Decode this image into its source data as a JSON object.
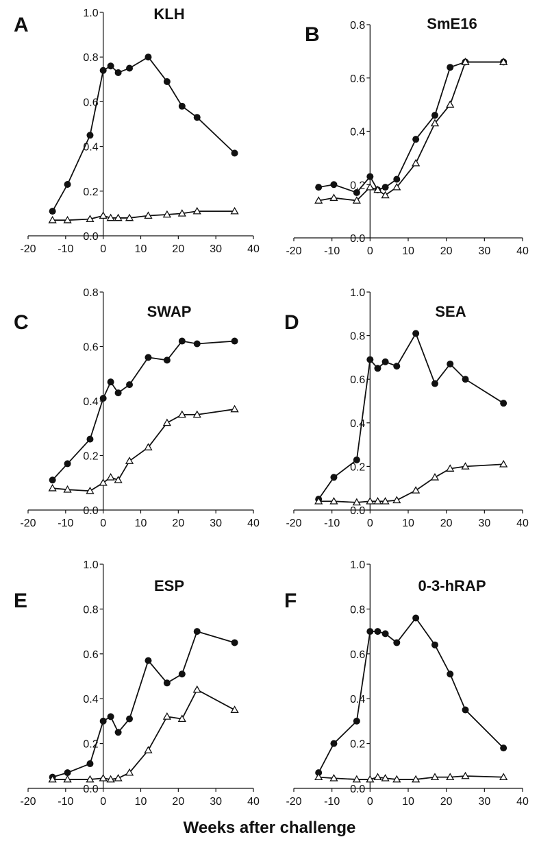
{
  "figure": {
    "xlabel": "Weeks after challenge"
  },
  "chart_data": [
    {
      "type": "line",
      "panel": "A",
      "title": "KLH",
      "xlim": [
        -20,
        40
      ],
      "ylim": [
        0,
        1.0
      ],
      "xticks": [
        -20,
        -10,
        0,
        10,
        20,
        30,
        40
      ],
      "xtick_labels": [
        "-20",
        "-10",
        "0",
        "10",
        "20",
        "30",
        "40"
      ],
      "yticks": [
        0,
        0.2,
        0.4,
        0.6,
        0.8,
        1.0
      ],
      "ytick_labels": [
        "0.0",
        "0.2",
        "0.4",
        "0.6",
        "0.8",
        "1.0"
      ],
      "series": [
        {
          "marker": "filled-circle",
          "x": [
            -13.5,
            -9.5,
            -3.5,
            0,
            2,
            4,
            7,
            12,
            17,
            21,
            25,
            35
          ],
          "y": [
            0.11,
            0.23,
            0.45,
            0.74,
            0.76,
            0.73,
            0.75,
            0.8,
            0.69,
            0.58,
            0.53,
            0.37
          ]
        },
        {
          "marker": "open-triangle",
          "x": [
            -13.5,
            -9.5,
            -3.5,
            0,
            2,
            4,
            7,
            12,
            17,
            21,
            25,
            35
          ],
          "y": [
            0.07,
            0.07,
            0.075,
            0.09,
            0.08,
            0.08,
            0.08,
            0.09,
            0.095,
            0.1,
            0.11,
            0.11
          ]
        }
      ]
    },
    {
      "type": "line",
      "panel": "B",
      "title": "SmE16",
      "xlim": [
        -20,
        40
      ],
      "ylim": [
        0,
        0.8
      ],
      "xticks": [
        -20,
        -10,
        0,
        10,
        20,
        30,
        40
      ],
      "xtick_labels": [
        "-20",
        "-10",
        "0",
        "10",
        "20",
        "30",
        "40"
      ],
      "yticks": [
        0,
        0.2,
        0.4,
        0.6,
        0.8
      ],
      "ytick_labels": [
        "0.0",
        "0.2",
        "0.4",
        "0.6",
        "0.8"
      ],
      "series": [
        {
          "marker": "filled-circle",
          "x": [
            -13.5,
            -9.5,
            -3.5,
            0,
            2,
            4,
            7,
            12,
            17,
            21,
            25,
            35
          ],
          "y": [
            0.19,
            0.2,
            0.17,
            0.23,
            0.18,
            0.19,
            0.22,
            0.37,
            0.46,
            0.64,
            0.66,
            0.66
          ]
        },
        {
          "marker": "open-triangle",
          "x": [
            -13.5,
            -9.5,
            -3.5,
            0,
            2,
            4,
            7,
            12,
            17,
            21,
            25,
            35
          ],
          "y": [
            0.14,
            0.15,
            0.14,
            0.19,
            0.18,
            0.16,
            0.19,
            0.28,
            0.43,
            0.5,
            0.66,
            0.66
          ]
        }
      ]
    },
    {
      "type": "line",
      "panel": "C",
      "title": "SWAP",
      "xlim": [
        -20,
        40
      ],
      "ylim": [
        0,
        0.8
      ],
      "xticks": [
        -20,
        -10,
        0,
        10,
        20,
        30,
        40
      ],
      "xtick_labels": [
        "-20",
        "-10",
        "0",
        "10",
        "20",
        "30",
        "40"
      ],
      "yticks": [
        0,
        0.2,
        0.4,
        0.6,
        0.8
      ],
      "ytick_labels": [
        "0.0",
        "0.2",
        "0.4",
        "0.6",
        "0.8"
      ],
      "series": [
        {
          "marker": "filled-circle",
          "x": [
            -13.5,
            -9.5,
            -3.5,
            0,
            2,
            4,
            7,
            12,
            17,
            21,
            25,
            35
          ],
          "y": [
            0.11,
            0.17,
            0.26,
            0.41,
            0.47,
            0.43,
            0.46,
            0.56,
            0.55,
            0.62,
            0.61,
            0.62
          ]
        },
        {
          "marker": "open-triangle",
          "x": [
            -13.5,
            -9.5,
            -3.5,
            0,
            2,
            4,
            7,
            12,
            17,
            21,
            25,
            35
          ],
          "y": [
            0.08,
            0.075,
            0.07,
            0.1,
            0.12,
            0.11,
            0.18,
            0.23,
            0.32,
            0.35,
            0.35,
            0.37
          ]
        }
      ]
    },
    {
      "type": "line",
      "panel": "D",
      "title": "SEA",
      "xlim": [
        -20,
        40
      ],
      "ylim": [
        0,
        1.0
      ],
      "xticks": [
        -20,
        -10,
        0,
        10,
        20,
        30,
        40
      ],
      "xtick_labels": [
        "-20",
        "-10",
        "0",
        "10",
        "20",
        "30",
        "40"
      ],
      "yticks": [
        0,
        0.2,
        0.4,
        0.6,
        0.8,
        1.0
      ],
      "ytick_labels": [
        "0.0",
        "0.2",
        "0.4",
        "0.6",
        "0.8",
        "1.0"
      ],
      "series": [
        {
          "marker": "filled-circle",
          "x": [
            -13.5,
            -9.5,
            -3.5,
            0,
            2,
            4,
            7,
            12,
            17,
            21,
            25,
            35
          ],
          "y": [
            0.05,
            0.15,
            0.23,
            0.69,
            0.65,
            0.68,
            0.66,
            0.81,
            0.58,
            0.67,
            0.6,
            0.49
          ]
        },
        {
          "marker": "open-triangle",
          "x": [
            -13.5,
            -9.5,
            -3.5,
            0,
            2,
            4,
            7,
            12,
            17,
            21,
            25,
            35
          ],
          "y": [
            0.04,
            0.04,
            0.035,
            0.04,
            0.04,
            0.04,
            0.045,
            0.09,
            0.15,
            0.19,
            0.2,
            0.21
          ]
        }
      ]
    },
    {
      "type": "line",
      "panel": "E",
      "title": "ESP",
      "xlim": [
        -20,
        40
      ],
      "ylim": [
        0,
        1.0
      ],
      "xticks": [
        -20,
        -10,
        0,
        10,
        20,
        30,
        40
      ],
      "xtick_labels": [
        "-20",
        "-10",
        "0",
        "10",
        "20",
        "30",
        "40"
      ],
      "yticks": [
        0,
        0.2,
        0.4,
        0.6,
        0.8,
        1.0
      ],
      "ytick_labels": [
        "0.0",
        "0.2",
        "0.4",
        "0.6",
        "0.8",
        "1.0"
      ],
      "series": [
        {
          "marker": "filled-circle",
          "x": [
            -13.5,
            -9.5,
            -3.5,
            0,
            2,
            4,
            7,
            12,
            17,
            21,
            25,
            35
          ],
          "y": [
            0.05,
            0.07,
            0.11,
            0.3,
            0.32,
            0.25,
            0.31,
            0.57,
            0.47,
            0.51,
            0.7,
            0.65
          ]
        },
        {
          "marker": "open-triangle",
          "x": [
            -13.5,
            -9.5,
            -3.5,
            0,
            2,
            4,
            7,
            12,
            17,
            21,
            25,
            35
          ],
          "y": [
            0.04,
            0.04,
            0.04,
            0.045,
            0.04,
            0.045,
            0.07,
            0.17,
            0.32,
            0.31,
            0.44,
            0.35
          ]
        }
      ]
    },
    {
      "type": "line",
      "panel": "F",
      "title": "0-3-hRAP",
      "xlim": [
        -20,
        40
      ],
      "ylim": [
        0,
        1.0
      ],
      "xticks": [
        -20,
        -10,
        0,
        10,
        20,
        30,
        40
      ],
      "xtick_labels": [
        "-20",
        "-10",
        "0",
        "10",
        "20",
        "30",
        "40"
      ],
      "yticks": [
        0,
        0.2,
        0.4,
        0.6,
        0.8,
        1.0
      ],
      "ytick_labels": [
        "0.0",
        "0.2",
        "0.4",
        "0.6",
        "0.8",
        "1.0"
      ],
      "series": [
        {
          "marker": "filled-circle",
          "x": [
            -13.5,
            -9.5,
            -3.5,
            0,
            2,
            4,
            7,
            12,
            17,
            21,
            25,
            35
          ],
          "y": [
            0.07,
            0.2,
            0.3,
            0.7,
            0.7,
            0.69,
            0.65,
            0.76,
            0.64,
            0.51,
            0.35,
            0.18
          ]
        },
        {
          "marker": "open-triangle",
          "x": [
            -13.5,
            -9.5,
            -3.5,
            0,
            2,
            4,
            7,
            12,
            17,
            21,
            25,
            35
          ],
          "y": [
            0.05,
            0.045,
            0.04,
            0.04,
            0.05,
            0.045,
            0.04,
            0.04,
            0.05,
            0.05,
            0.055,
            0.05
          ]
        }
      ]
    }
  ]
}
